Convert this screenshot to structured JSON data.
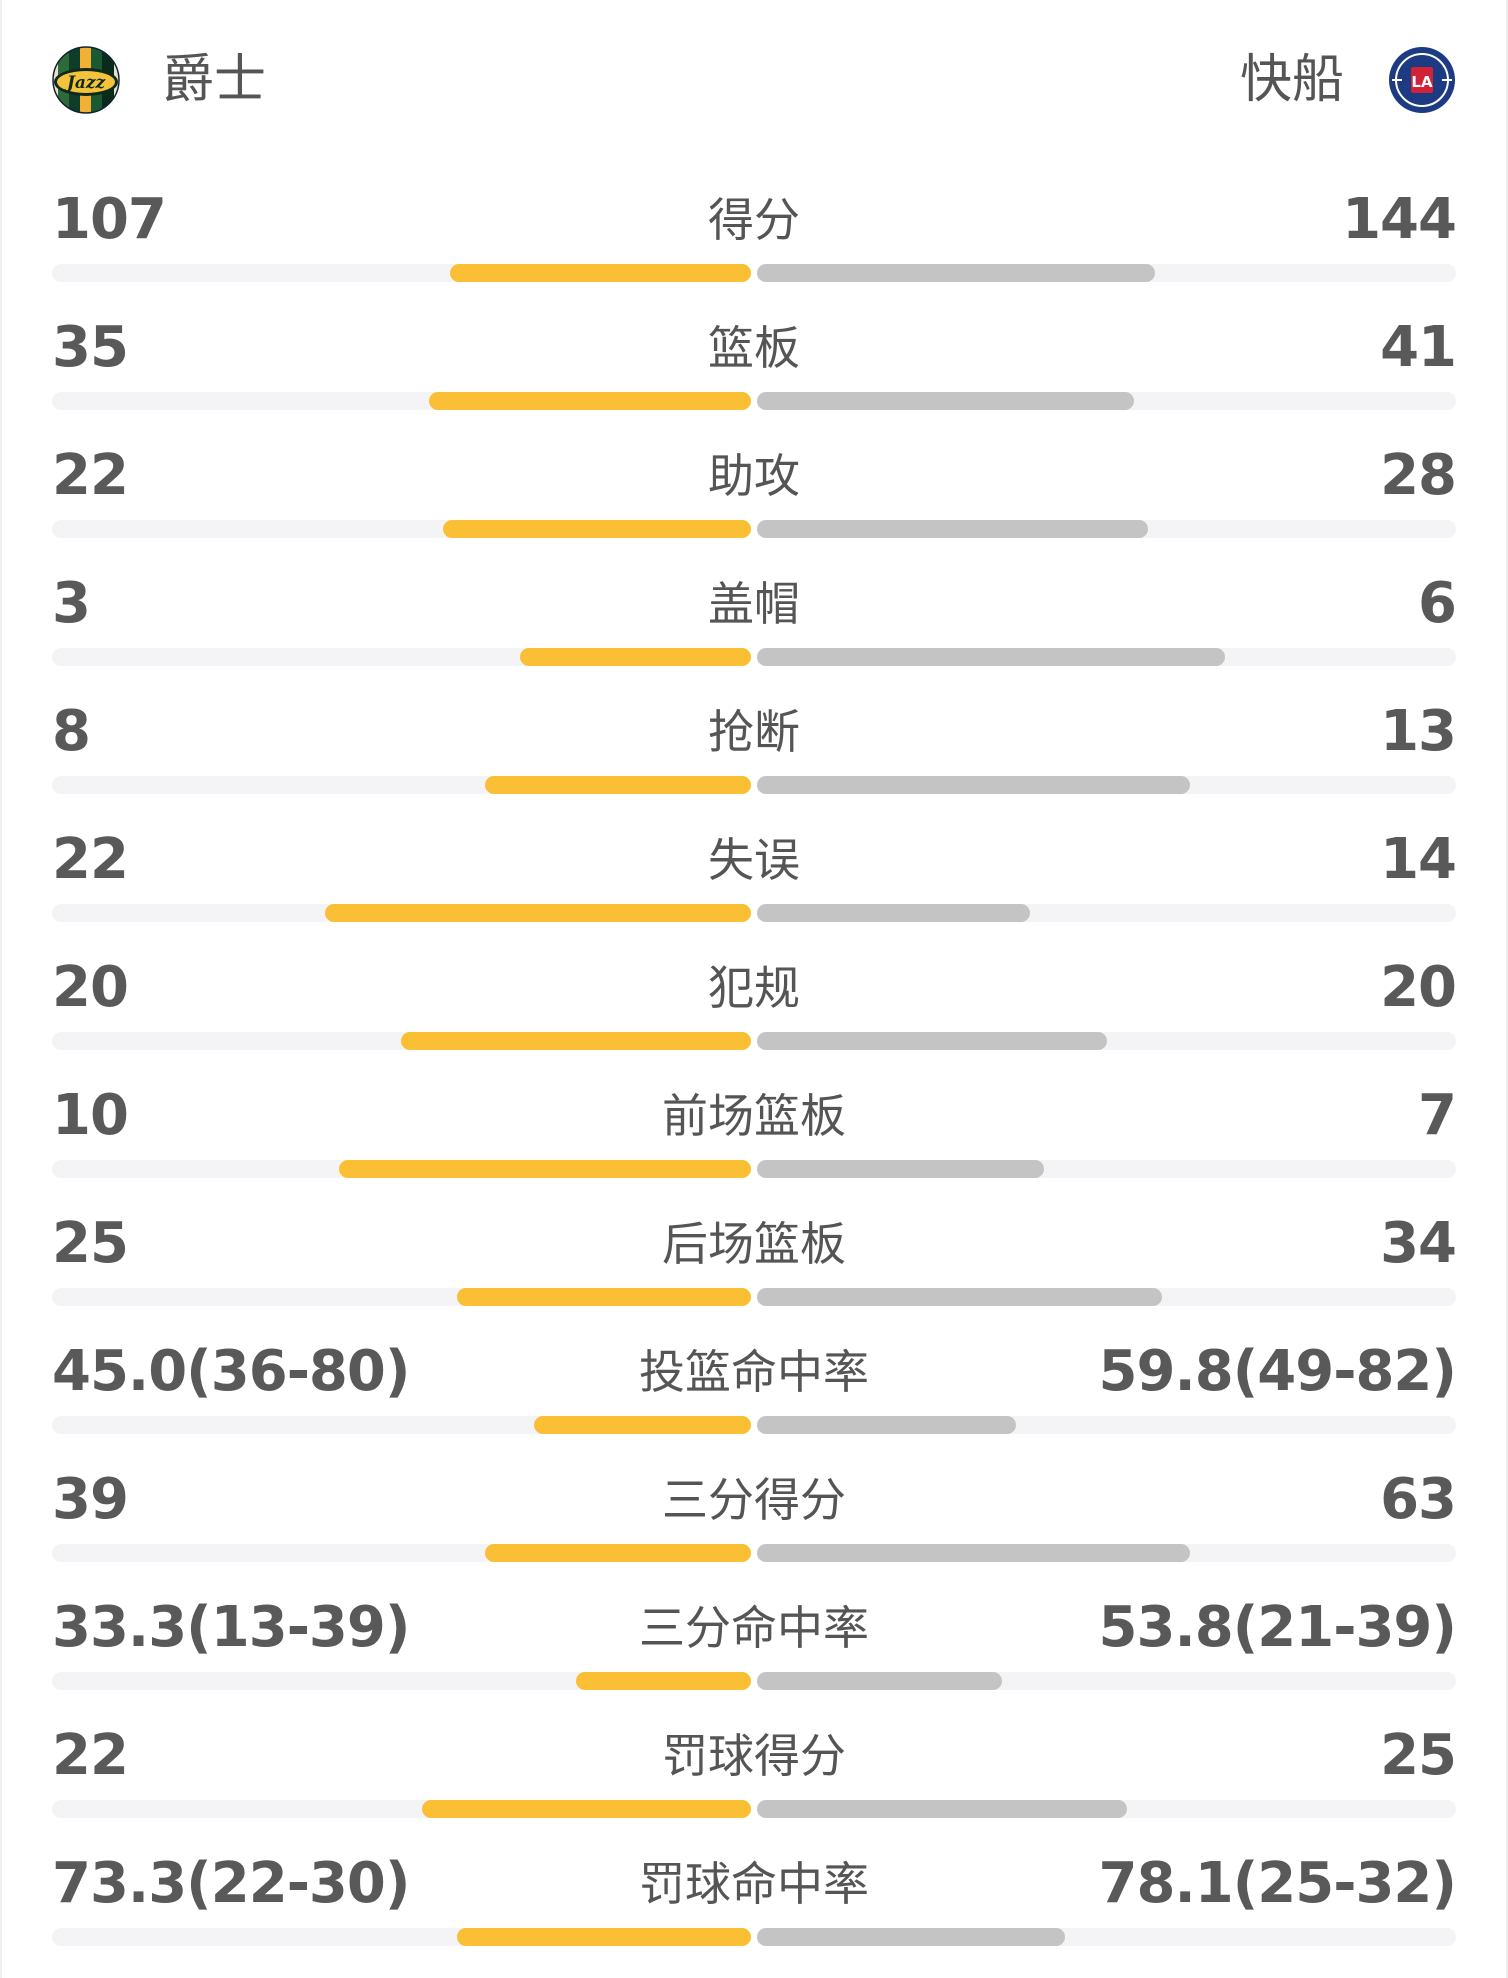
{
  "teams": {
    "home": {
      "name": "爵士",
      "logo_icon": "jazz-logo-icon"
    },
    "away": {
      "name": "快船",
      "logo_icon": "clippers-logo-icon"
    }
  },
  "colors": {
    "home_bar": "#fbbf35",
    "away_bar": "#c4c4c4",
    "track": "#f4f4f6",
    "text": "#595959"
  },
  "stats": [
    {
      "label": "得分",
      "home": "107",
      "away": "144",
      "home_bar": 0.43,
      "away_bar": 0.57
    },
    {
      "label": "篮板",
      "home": "35",
      "away": "41",
      "home_bar": 0.46,
      "away_bar": 0.54
    },
    {
      "label": "助攻",
      "home": "22",
      "away": "28",
      "home_bar": 0.44,
      "away_bar": 0.56
    },
    {
      "label": "盖帽",
      "home": "3",
      "away": "6",
      "home_bar": 0.33,
      "away_bar": 0.67
    },
    {
      "label": "抢断",
      "home": "8",
      "away": "13",
      "home_bar": 0.38,
      "away_bar": 0.62
    },
    {
      "label": "失误",
      "home": "22",
      "away": "14",
      "home_bar": 0.61,
      "away_bar": 0.39
    },
    {
      "label": "犯规",
      "home": "20",
      "away": "20",
      "home_bar": 0.5,
      "away_bar": 0.5
    },
    {
      "label": "前场篮板",
      "home": "10",
      "away": "7",
      "home_bar": 0.59,
      "away_bar": 0.41
    },
    {
      "label": "后场篮板",
      "home": "25",
      "away": "34",
      "home_bar": 0.42,
      "away_bar": 0.58
    },
    {
      "label": "投篮命中率",
      "home": "45.0(36-80)",
      "away": "59.8(49-82)",
      "home_bar": 0.31,
      "away_bar": 0.37
    },
    {
      "label": "三分得分",
      "home": "39",
      "away": "63",
      "home_bar": 0.38,
      "away_bar": 0.62
    },
    {
      "label": "三分命中率",
      "home": "33.3(13-39)",
      "away": "53.8(21-39)",
      "home_bar": 0.25,
      "away_bar": 0.35
    },
    {
      "label": "罚球得分",
      "home": "22",
      "away": "25",
      "home_bar": 0.47,
      "away_bar": 0.53
    },
    {
      "label": "罚球命中率",
      "home": "73.3(22-30)",
      "away": "78.1(25-32)",
      "home_bar": 0.42,
      "away_bar": 0.44
    }
  ]
}
